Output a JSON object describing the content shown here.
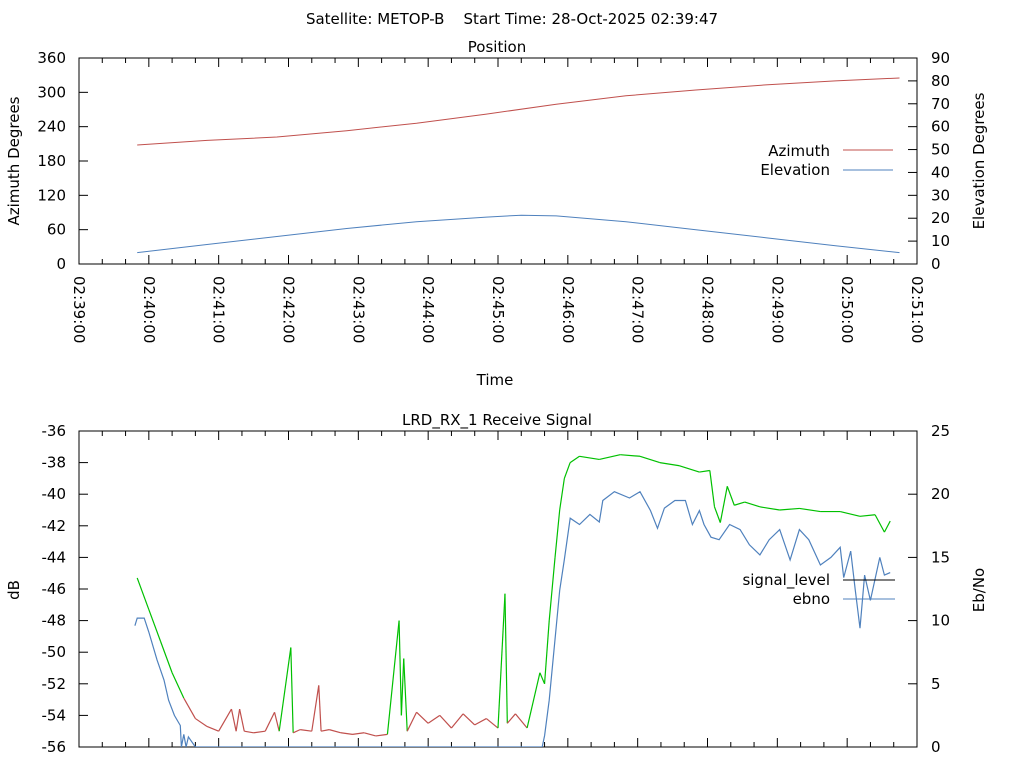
{
  "header": {
    "title": "Satellite: METOP-B    Start Time: 28-Oct-2025 02:39:47"
  },
  "chart_data": [
    {
      "type": "line",
      "title": "Position",
      "xlabel": "Time",
      "ylabel": "Azimuth Degrees",
      "y2label": "Elevation Degrees",
      "x_unit": "seconds after 02:39:00",
      "xlim": [
        0,
        720
      ],
      "ylim": [
        0,
        360
      ],
      "y2lim": [
        0,
        90
      ],
      "xticks": [
        0,
        60,
        120,
        180,
        240,
        300,
        360,
        420,
        480,
        540,
        600,
        660,
        720
      ],
      "xtick_labels": [
        "02:39:00",
        "02:40:00",
        "02:41:00",
        "02:42:00",
        "02:43:00",
        "02:44:00",
        "02:45:00",
        "02:46:00",
        "02:47:00",
        "02:48:00",
        "02:49:00",
        "02:50:00",
        "02:51:00"
      ],
      "yticks": [
        0,
        60,
        120,
        180,
        240,
        300,
        360
      ],
      "y2ticks": [
        0,
        10,
        20,
        30,
        40,
        50,
        60,
        70,
        80,
        90
      ],
      "legend_position": "right",
      "series": [
        {
          "name": "Azimuth",
          "axis": "y",
          "color": "#c0504d",
          "x": [
            50,
            110,
            170,
            230,
            290,
            350,
            410,
            470,
            530,
            590,
            650,
            705
          ],
          "values": [
            208,
            216,
            222,
            233,
            246,
            262,
            279,
            294,
            304,
            313,
            320,
            325
          ]
        },
        {
          "name": "Elevation",
          "axis": "y2",
          "color": "#4f81bd",
          "x": [
            50,
            110,
            170,
            230,
            290,
            350,
            380,
            410,
            470,
            530,
            590,
            650,
            705
          ],
          "values": [
            5,
            8.5,
            12,
            15.5,
            18.5,
            20.5,
            21.3,
            21,
            18.5,
            15,
            11.5,
            8,
            5
          ]
        }
      ]
    },
    {
      "type": "line",
      "title": "LRD_RX_1 Receive Signal",
      "ylabel": "dB",
      "y2label": "Eb/No",
      "x_unit": "seconds after 02:39:00",
      "xlim": [
        0,
        720
      ],
      "ylim": [
        -56,
        -36
      ],
      "y2lim": [
        0,
        25
      ],
      "yticks": [
        -36,
        -38,
        -40,
        -42,
        -44,
        -46,
        -48,
        -50,
        -52,
        -54,
        -56
      ],
      "y2ticks": [
        0,
        5,
        10,
        15,
        20,
        25
      ],
      "legend_position": "right",
      "signal_colors": {
        "high": "#00c000",
        "low": "#c0504d",
        "threshold_db": -53.3
      },
      "series": [
        {
          "name": "signal_level",
          "axis": "y",
          "legend_color": "#000000",
          "x": [
            50,
            60,
            70,
            80,
            90,
            100,
            110,
            120,
            131,
            135,
            138,
            142,
            150,
            160,
            168,
            172,
            182,
            184,
            190,
            200,
            206,
            208,
            215,
            225,
            235,
            245,
            255,
            265,
            275,
            277,
            279,
            282,
            290,
            300,
            310,
            320,
            330,
            340,
            350,
            360,
            366,
            368,
            375,
            385,
            396,
            400,
            404,
            409,
            413,
            417,
            422,
            430,
            447,
            465,
            482,
            499,
            516,
            533,
            542,
            546,
            551,
            557,
            563,
            572,
            585,
            602,
            619,
            637,
            654,
            671,
            684,
            692,
            697
          ],
          "values": [
            -45.3,
            -47.3,
            -49.3,
            -51.3,
            -52.9,
            -54.2,
            -54.7,
            -55.0,
            -53.6,
            -55.0,
            -53.6,
            -55.0,
            -55.1,
            -55.0,
            -53.8,
            -55.0,
            -49.7,
            -55.1,
            -54.9,
            -55.0,
            -52.1,
            -55.0,
            -54.9,
            -55.1,
            -55.2,
            -55.1,
            -55.3,
            -55.2,
            -48.0,
            -54.0,
            -50.4,
            -55.0,
            -53.8,
            -54.5,
            -54.0,
            -54.8,
            -53.9,
            -54.6,
            -54.2,
            -54.8,
            -46.3,
            -54.5,
            -53.9,
            -54.8,
            -51.3,
            -52.0,
            -48.0,
            -44.0,
            -41.0,
            -39.0,
            -38.0,
            -37.6,
            -37.8,
            -37.5,
            -37.6,
            -38.0,
            -38.2,
            -38.6,
            -38.5,
            -40.8,
            -41.8,
            -39.5,
            -40.7,
            -40.5,
            -40.8,
            -41.0,
            -40.9,
            -41.1,
            -41.1,
            -41.4,
            -41.3,
            -42.4,
            -41.7
          ]
        },
        {
          "name": "ebno",
          "axis": "y2",
          "color": "#4f81bd",
          "x": [
            48,
            50,
            56,
            60,
            67,
            73,
            77,
            82,
            87,
            88,
            90,
            92,
            94,
            100,
            395,
            398,
            400,
            404,
            409,
            413,
            417,
            422,
            430,
            439,
            447,
            450,
            460,
            473,
            482,
            491,
            497,
            503,
            512,
            521,
            527,
            533,
            537,
            543,
            550,
            559,
            568,
            576,
            585,
            593,
            602,
            611,
            619,
            627,
            637,
            646,
            654,
            657,
            663,
            667,
            671,
            675,
            680,
            688,
            692,
            697
          ],
          "values": [
            9.6,
            10.2,
            10.2,
            9.1,
            6.9,
            5.3,
            3.7,
            2.5,
            1.7,
            0,
            1.0,
            0,
            0.8,
            0,
            0,
            0,
            0.9,
            3.7,
            8.5,
            12.4,
            14.8,
            18.1,
            17.6,
            18.4,
            17.8,
            19.5,
            20.2,
            19.7,
            20.2,
            18.7,
            17.3,
            18.9,
            19.5,
            19.5,
            17.6,
            18.7,
            17.6,
            16.6,
            16.4,
            17.6,
            17.2,
            16.0,
            15.2,
            16.4,
            17.2,
            14.8,
            17.2,
            16.4,
            14.4,
            15.0,
            15.8,
            13.4,
            15.5,
            12.4,
            9.4,
            13.6,
            11.6,
            15.0,
            13.6,
            13.8
          ]
        }
      ]
    }
  ]
}
